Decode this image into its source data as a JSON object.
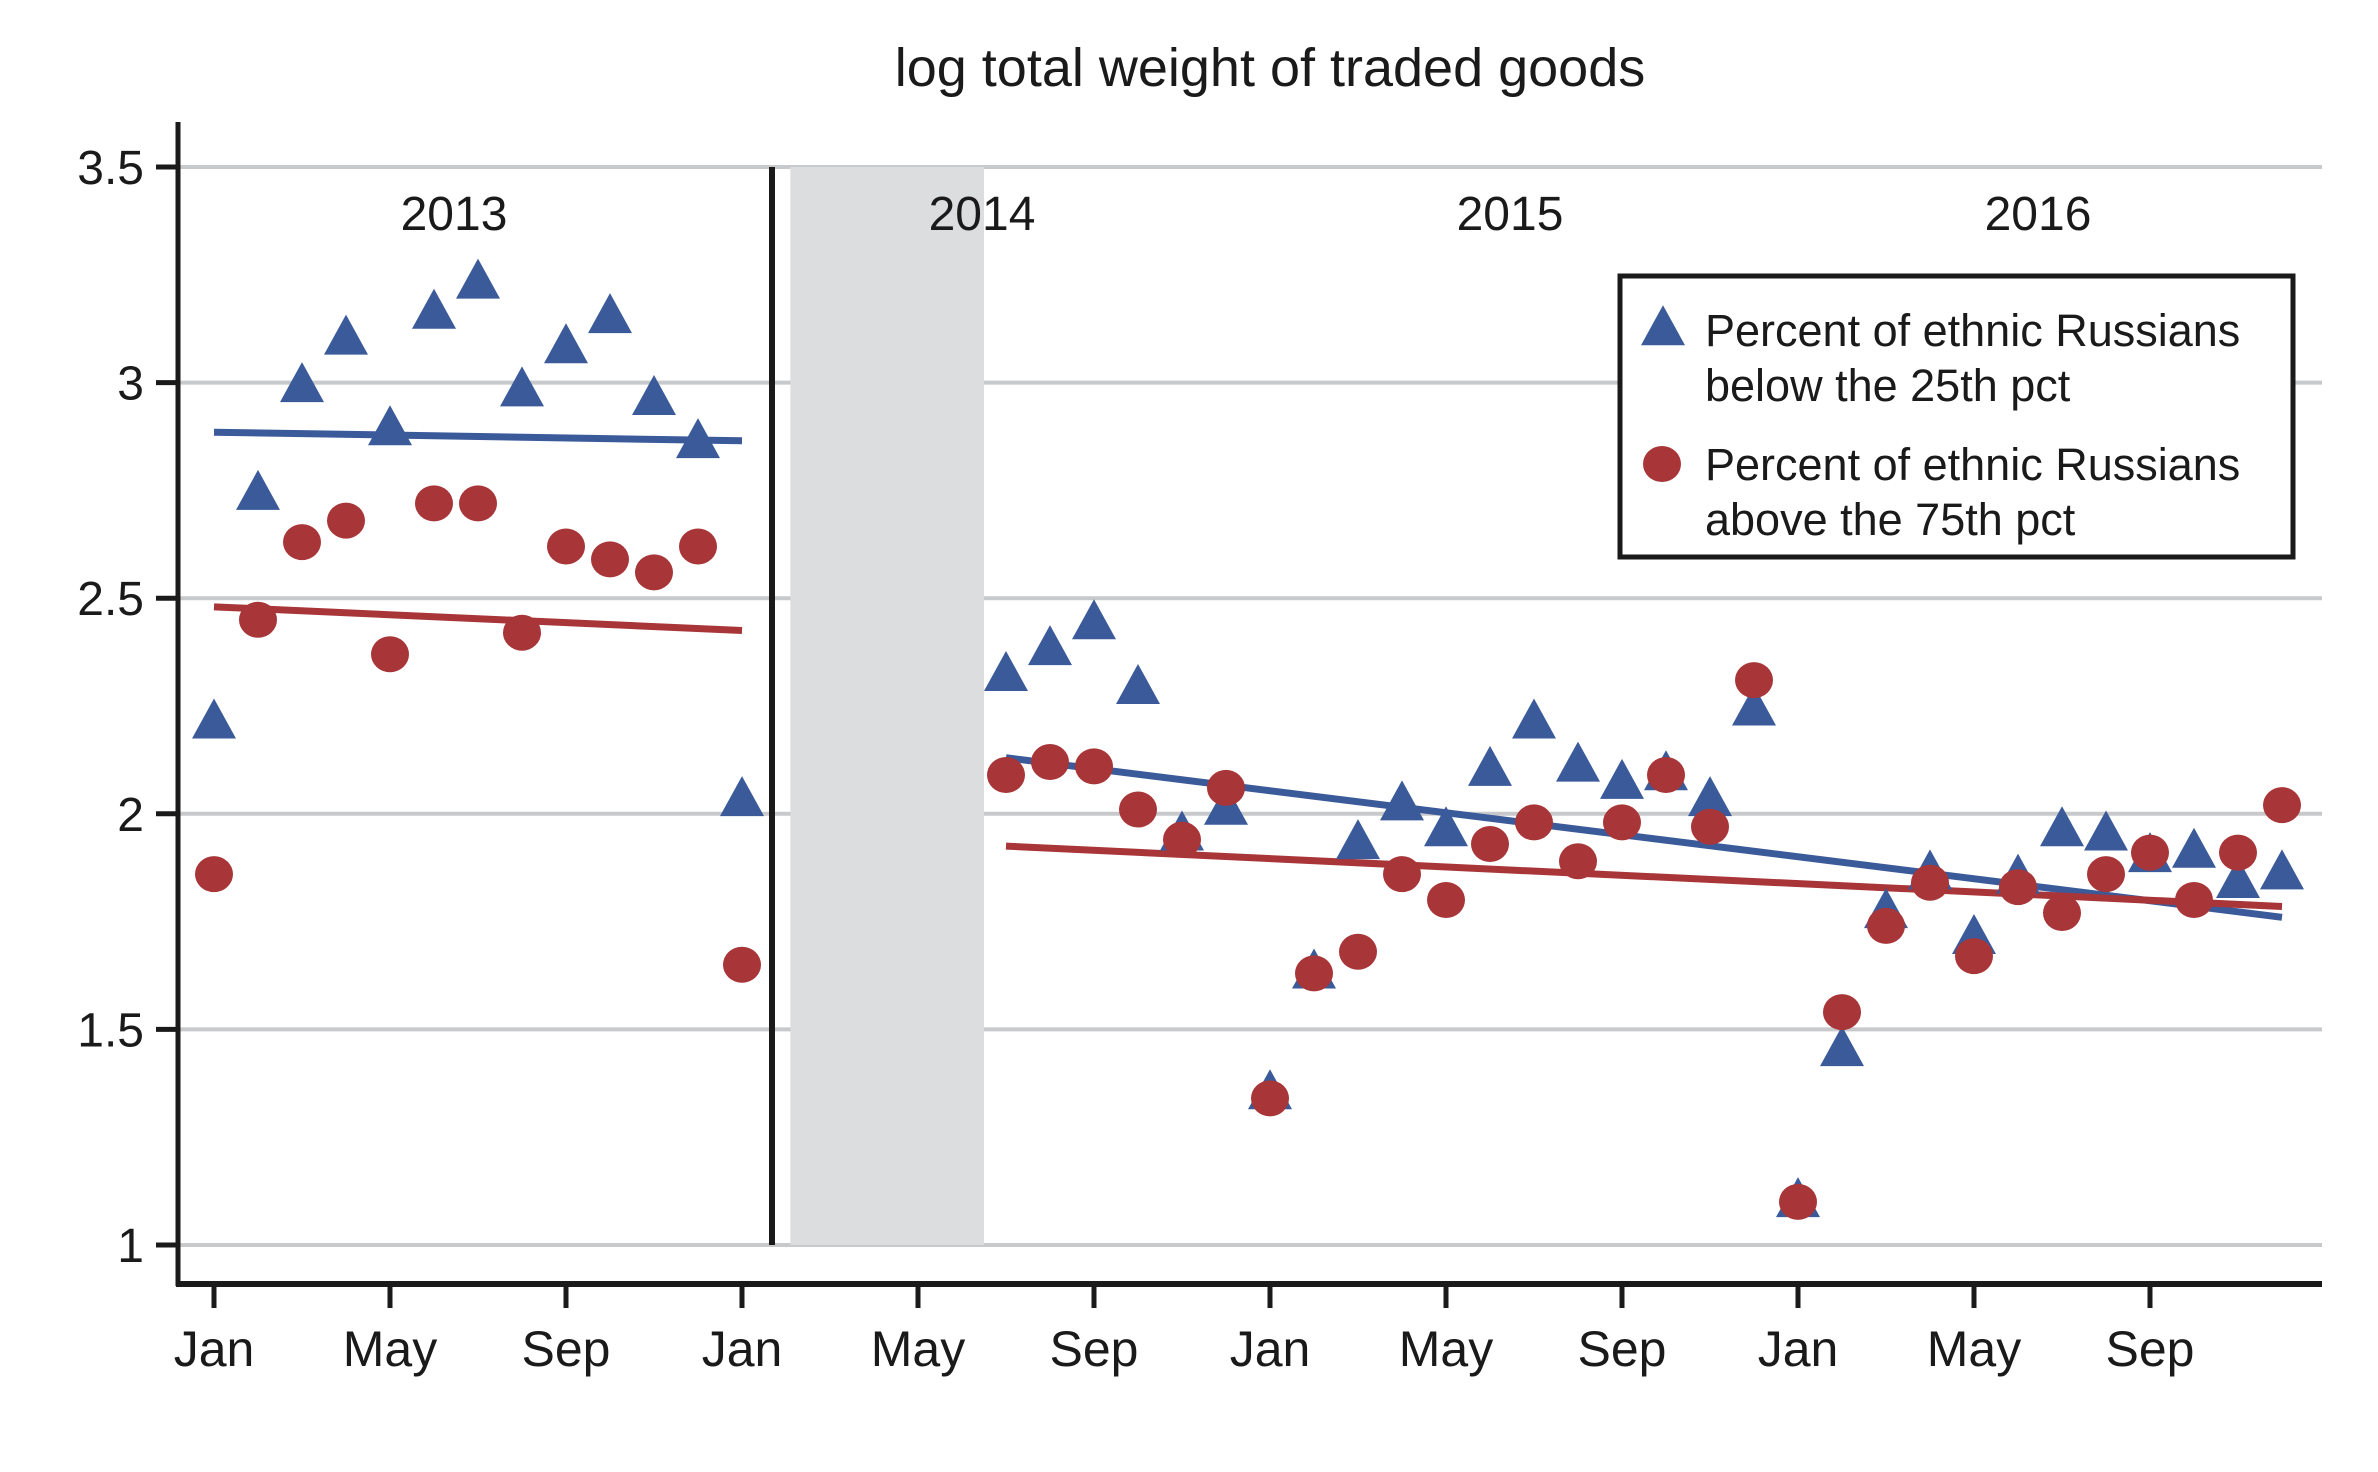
{
  "chart_data": {
    "type": "scatter",
    "title": "log total weight of traded goods",
    "xlabel": "",
    "ylabel": "",
    "ylim": [
      1,
      3.5
    ],
    "y_ticks": [
      "1",
      "1.5",
      "2",
      "2.5",
      "3",
      "3.5"
    ],
    "y_tick_values": [
      1,
      1.5,
      2,
      2.5,
      3,
      3.5
    ],
    "x_range_months": [
      "2013-01",
      "2016-12"
    ],
    "x_ticks": [
      {
        "label": "Jan",
        "month_index": 0
      },
      {
        "label": "May",
        "month_index": 4
      },
      {
        "label": "Sep",
        "month_index": 8
      },
      {
        "label": "Jan",
        "month_index": 12
      },
      {
        "label": "May",
        "month_index": 16
      },
      {
        "label": "Sep",
        "month_index": 20
      },
      {
        "label": "Jan",
        "month_index": 24
      },
      {
        "label": "May",
        "month_index": 28
      },
      {
        "label": "Sep",
        "month_index": 32
      },
      {
        "label": "Jan",
        "month_index": 36
      },
      {
        "label": "May",
        "month_index": 40
      },
      {
        "label": "Sep",
        "month_index": 44
      }
    ],
    "year_labels": [
      {
        "label": "2013",
        "month_index": 5.5
      },
      {
        "label": "2014",
        "month_index": 17.5
      },
      {
        "label": "2015",
        "month_index": 29.5
      },
      {
        "label": "2016",
        "month_index": 41.5
      }
    ],
    "grid": true,
    "annotations": {
      "vertical_line_month_index": 13,
      "shaded_period_month_index": [
        13.1,
        17
      ]
    },
    "legend": {
      "placement": "top-right",
      "entries": [
        {
          "marker": "triangle",
          "line1": "Percent of ethnic Russians",
          "line2": "below the 25th pct"
        },
        {
          "marker": "circle",
          "line1": "Percent of ethnic Russians",
          "line2": "above the 75th pct"
        }
      ]
    },
    "series": [
      {
        "name": "Percent of ethnic Russians below the 25th pct",
        "marker": "triangle",
        "color": "#3a5a9a",
        "segments": [
          {
            "start_month_index": 0,
            "values": [
              2.21,
              2.74,
              2.99,
              3.1,
              2.89,
              3.16,
              3.23,
              2.98,
              3.08,
              3.15,
              2.96,
              2.86,
              2.03
            ],
            "fit": [
              2.885,
              2.865
            ]
          },
          {
            "start_month_index": 18,
            "values": [
              2.32,
              2.38,
              2.44,
              2.29,
              1.95,
              2.01,
              1.35,
              1.63,
              1.93,
              2.02,
              1.96,
              2.1,
              2.21,
              2.11,
              2.07,
              2.09,
              2.03,
              2.24,
              1.1,
              1.45,
              1.77,
              1.86,
              1.71,
              1.85,
              1.96,
              1.95,
              1.9,
              1.91,
              1.84,
              1.86
            ],
            "fit": [
              2.13,
              1.76
            ]
          }
        ]
      },
      {
        "name": "Percent of ethnic Russians above the 75th pct",
        "marker": "circle",
        "color": "#a83538",
        "segments": [
          {
            "start_month_index": 0,
            "values": [
              1.86,
              2.45,
              2.63,
              2.68,
              2.37,
              2.72,
              2.72,
              2.42,
              2.62,
              2.59,
              2.56,
              2.62,
              1.65
            ],
            "fit": [
              2.48,
              2.425
            ]
          },
          {
            "start_month_index": 18,
            "values": [
              2.09,
              2.12,
              2.11,
              2.01,
              1.94,
              2.06,
              1.34,
              1.63,
              1.68,
              1.86,
              1.8,
              1.93,
              1.98,
              1.89,
              1.98,
              2.09,
              1.97,
              2.31,
              1.1,
              1.54,
              1.74,
              1.84,
              1.67,
              1.83,
              1.77,
              1.86,
              1.91,
              1.8,
              1.91,
              2.02
            ],
            "fit": [
              1.925,
              1.785
            ]
          }
        ]
      }
    ]
  }
}
